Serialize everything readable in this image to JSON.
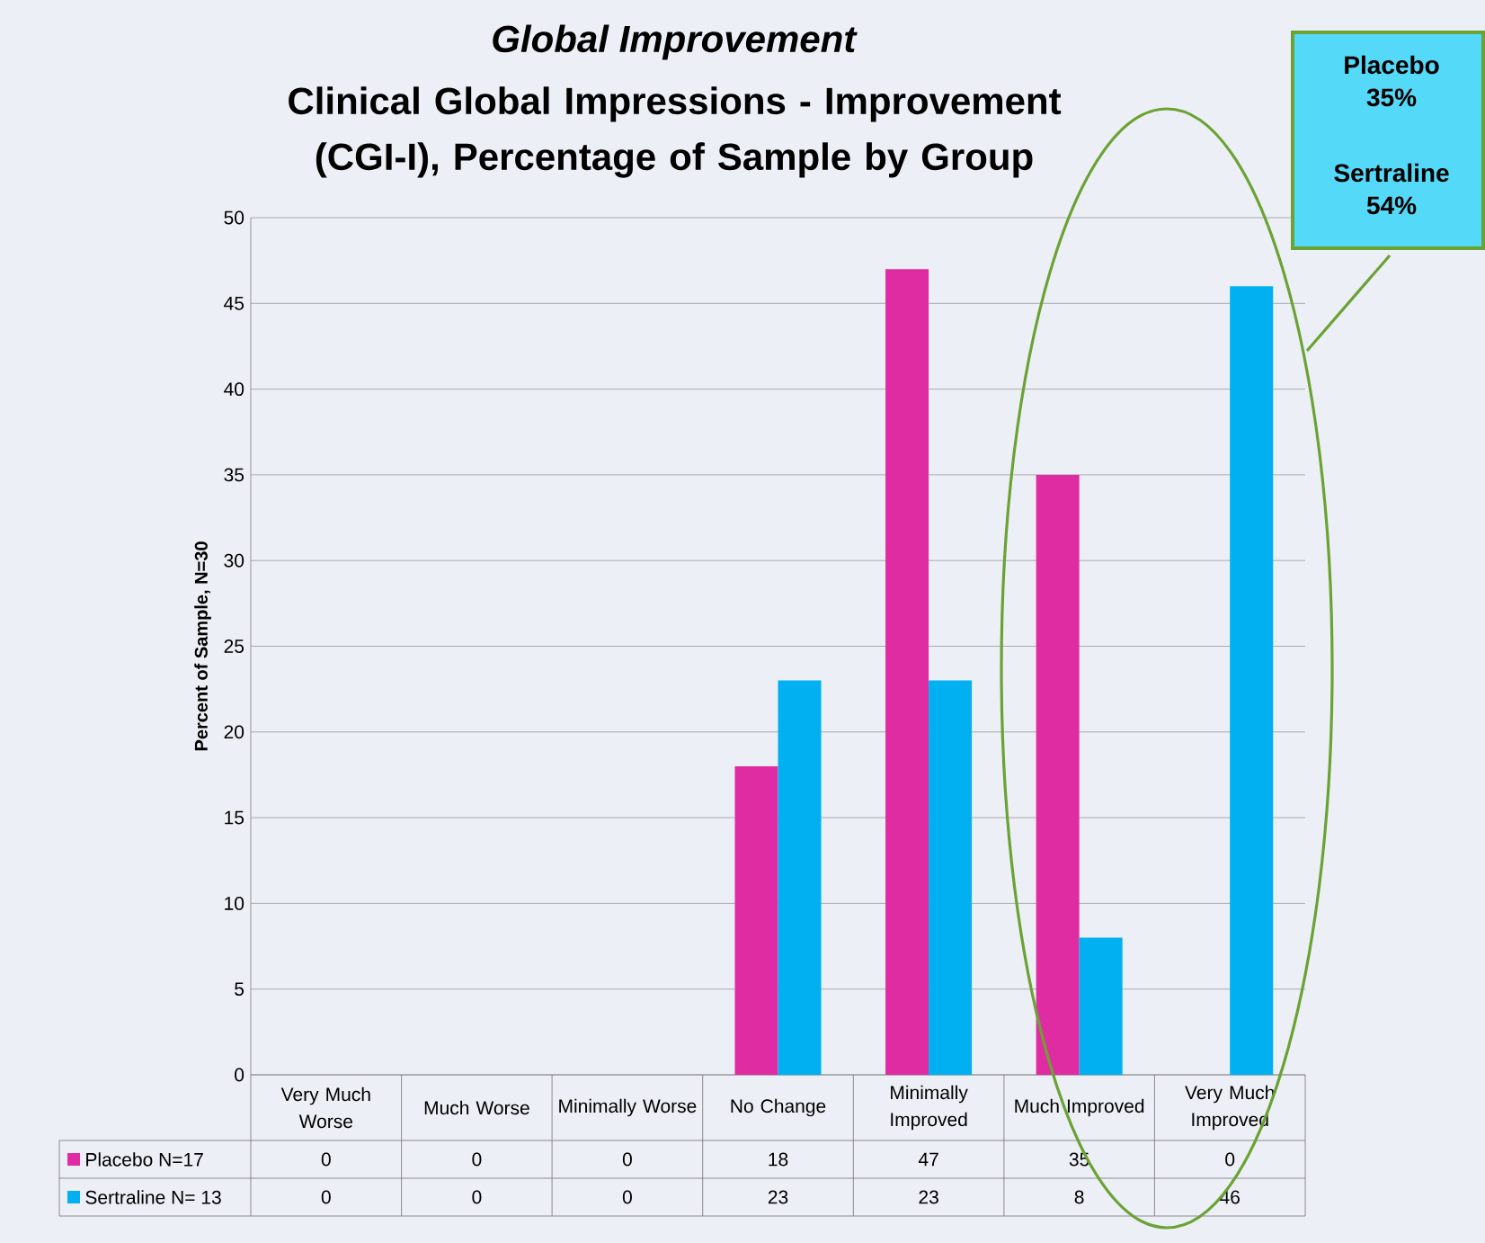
{
  "chart_data": {
    "type": "bar",
    "title": "*Global Improvement*",
    "subtitle": "Clinical Global Impressions - Improvement (CGI-I), Percentage of Sample by Group",
    "ylabel": "Percent of Sample, N=30",
    "categories": [
      "Very Much Worse",
      "Much Worse",
      "Minimally Worse",
      "No Change",
      "Minimally Improved",
      "Much Improved",
      "Very Much Improved"
    ],
    "series": [
      {
        "name": "Placebo N=17",
        "color": "#e02ca3",
        "values": [
          0,
          0,
          0,
          18,
          47,
          35,
          0
        ]
      },
      {
        "name": "Sertraline N= 13",
        "color": "#00b0f0",
        "values": [
          0,
          0,
          0,
          23,
          23,
          8,
          46
        ]
      }
    ],
    "ylim": [
      0,
      50
    ],
    "yticks": [
      0,
      5,
      10,
      15,
      20,
      25,
      30,
      35,
      40,
      45,
      50
    ],
    "grid": "y",
    "legend": "bottom",
    "data_labels": true,
    "annotations": [
      "Placebo 35%",
      "Sertraline 54%"
    ]
  }
}
